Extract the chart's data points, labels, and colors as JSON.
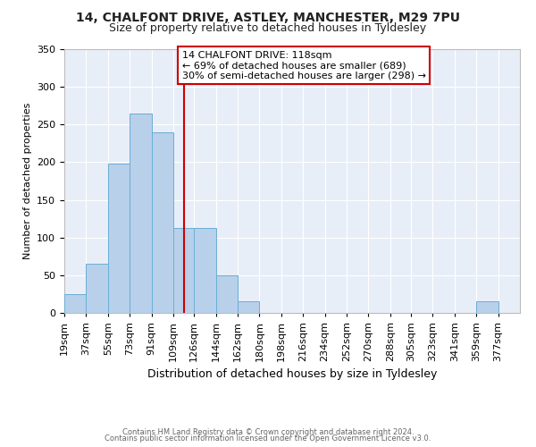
{
  "title": "14, CHALFONT DRIVE, ASTLEY, MANCHESTER, M29 7PU",
  "subtitle": "Size of property relative to detached houses in Tyldesley",
  "xlabel": "Distribution of detached houses by size in Tyldesley",
  "ylabel": "Number of detached properties",
  "bin_labels": [
    "19sqm",
    "37sqm",
    "55sqm",
    "73sqm",
    "91sqm",
    "109sqm",
    "126sqm",
    "144sqm",
    "162sqm",
    "180sqm",
    "198sqm",
    "216sqm",
    "234sqm",
    "252sqm",
    "270sqm",
    "288sqm",
    "305sqm",
    "323sqm",
    "341sqm",
    "359sqm",
    "377sqm"
  ],
  "bin_left_edges": [
    19,
    37,
    55,
    73,
    91,
    109,
    126,
    144,
    162,
    180,
    198,
    216,
    234,
    252,
    270,
    288,
    305,
    323,
    341,
    359,
    377
  ],
  "bin_width": 18,
  "bar_heights": [
    25,
    65,
    198,
    265,
    240,
    113,
    113,
    50,
    15,
    0,
    0,
    0,
    0,
    0,
    0,
    0,
    0,
    0,
    0,
    15,
    0
  ],
  "bar_color": "#b8d0ea",
  "bar_edge_color": "#6aaed6",
  "property_line_x": 118,
  "property_line_color": "#cc0000",
  "annotation_text": "14 CHALFONT DRIVE: 118sqm\n← 69% of detached houses are smaller (689)\n30% of semi-detached houses are larger (298) →",
  "annotation_box_facecolor": "white",
  "annotation_box_edgecolor": "#cc0000",
  "ylim": [
    0,
    350
  ],
  "yticks": [
    0,
    50,
    100,
    150,
    200,
    250,
    300,
    350
  ],
  "plot_bg_color": "#e8eef8",
  "fig_bg_color": "#ffffff",
  "grid_color": "#ffffff",
  "footer_line1": "Contains HM Land Registry data © Crown copyright and database right 2024.",
  "footer_line2": "Contains public sector information licensed under the Open Government Licence v3.0.",
  "title_fontsize": 10,
  "subtitle_fontsize": 9,
  "ylabel_fontsize": 8,
  "xlabel_fontsize": 9,
  "tick_fontsize": 8,
  "footer_fontsize": 6,
  "annotation_fontsize": 8
}
